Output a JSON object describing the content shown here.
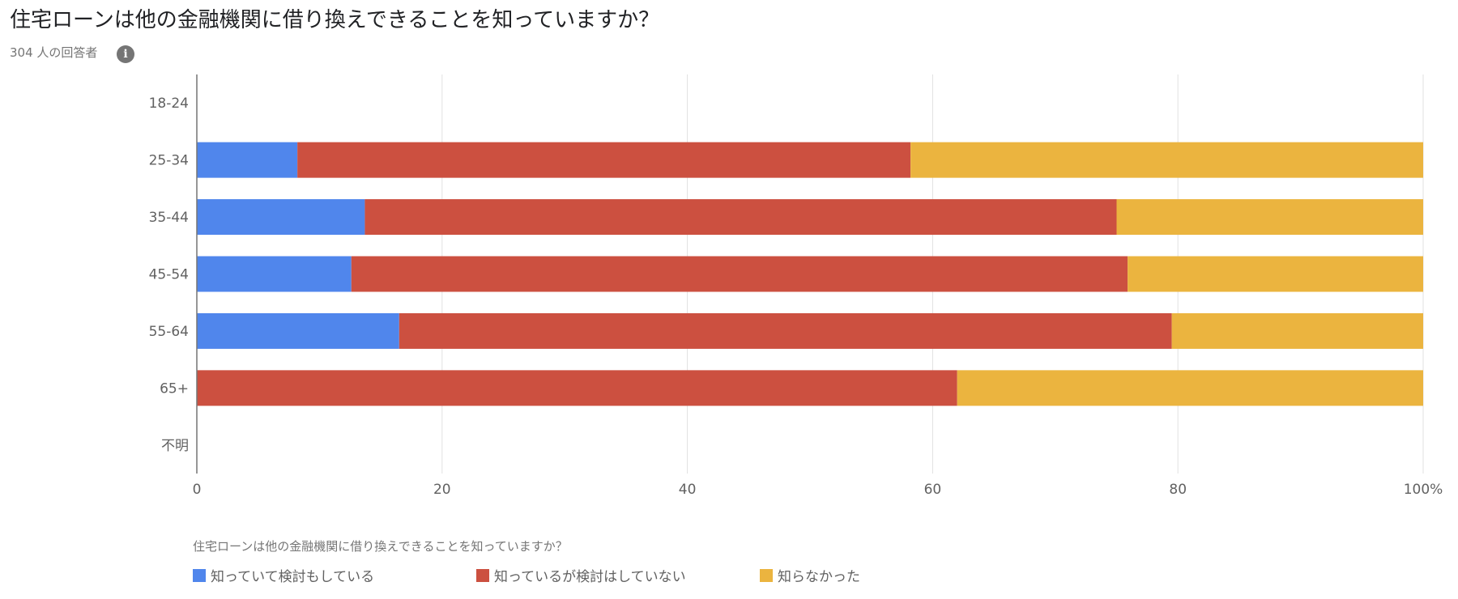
{
  "header": {
    "title": "住宅ローンは他の金融機関に借り換えできることを知っていますか？",
    "respondents": "304 人の回答者",
    "info_icon": "info-icon",
    "info_glyph": "i"
  },
  "chart_data": {
    "type": "bar",
    "orientation": "horizontal",
    "stacked": "percent",
    "categories": [
      "18-24",
      "25-34",
      "35-44",
      "45-54",
      "55-64",
      "65+",
      "不明"
    ],
    "series": [
      {
        "name": "知っていて検討もしている",
        "color": "#5086ec",
        "values": [
          0,
          8.2,
          13.7,
          12.6,
          16.5,
          0,
          0
        ]
      },
      {
        "name": "知っているが検討はしていない",
        "color": "#cc5040",
        "values": [
          0,
          50.0,
          61.3,
          63.3,
          63.0,
          62.0,
          0
        ]
      },
      {
        "name": "知らなかった",
        "color": "#ebb43f",
        "values": [
          0,
          41.8,
          25.0,
          24.1,
          20.5,
          38.0,
          0
        ]
      }
    ],
    "x_ticks": [
      "0",
      "20",
      "40",
      "60",
      "80",
      "100%"
    ],
    "xlim": [
      0,
      100
    ],
    "grid": true,
    "legend_title": "住宅ローンは他の金融機関に借り換えできることを知っていますか？",
    "legend_position": "bottom"
  }
}
